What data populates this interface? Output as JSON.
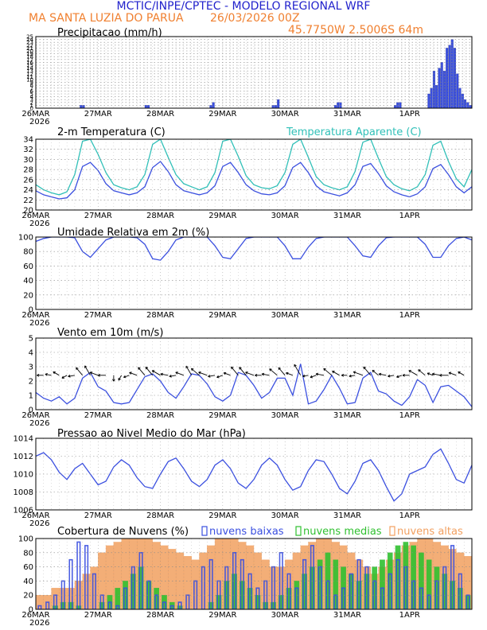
{
  "header": {
    "title": "MCTIC/INPE/CPTEC - MODELO REGIONAL WRF",
    "location": "MA SANTA LUZIA DO PARUA",
    "run": "26/03/2026 00Z",
    "coords": "45.7750W 2.5006S 64m"
  },
  "colors": {
    "blue": "#3a4fe0",
    "cyan": "#30c0b8",
    "orange": "#f2a060",
    "green": "#30c030",
    "black": "#000000",
    "grid": "#888888"
  },
  "x_axis": {
    "start_label": "26MAR",
    "year": "2026",
    "dates": [
      "26MAR",
      "27MAR",
      "28MAR",
      "29MAR",
      "30MAR",
      "31MAR",
      "1APR"
    ],
    "hours_total": 168
  },
  "chart_data": [
    {
      "id": "precip",
      "type": "bar",
      "title": "Precipitacao (mm/h)",
      "ylim": [
        0,
        25
      ],
      "yticks": [
        "0",
        "1",
        "2",
        "3",
        "4",
        "5",
        "6",
        "7",
        "8",
        "9",
        "10",
        "11",
        "12",
        "13",
        "14",
        "15",
        "16",
        "17",
        "18",
        "19",
        "20",
        "21",
        "22",
        "23",
        "24",
        "25"
      ],
      "series": [
        {
          "name": "precipitacao",
          "color": "#3a4fe0",
          "x": [
            17,
            18,
            42,
            43,
            67,
            68,
            91,
            92,
            93,
            115,
            116,
            117,
            138,
            139,
            140,
            151,
            152,
            153,
            154,
            155,
            156,
            157,
            158,
            159,
            160,
            161,
            162,
            163,
            164,
            165,
            166,
            167
          ],
          "values": [
            1,
            1,
            1,
            1,
            1,
            2,
            1,
            1,
            3,
            1,
            2,
            2,
            1,
            2,
            2,
            5,
            7,
            13,
            8,
            14,
            16,
            13,
            21,
            22,
            24,
            21,
            12,
            7,
            5,
            3,
            2,
            1
          ]
        }
      ]
    },
    {
      "id": "temp",
      "type": "line",
      "title": "2-m Temperatura (C)",
      "legend": "Temperatura Aparente (C)",
      "ylim": [
        20,
        34
      ],
      "yticks": [
        "20",
        "22",
        "24",
        "26",
        "28",
        "30",
        "32",
        "34"
      ],
      "series": [
        {
          "name": "temperatura",
          "color": "#3a4fe0",
          "x": [
            0,
            3,
            6,
            9,
            12,
            15,
            18,
            21,
            24,
            27,
            30,
            33,
            36,
            39,
            42,
            45,
            48,
            51,
            54,
            57,
            60,
            63,
            66,
            69,
            72,
            75,
            78,
            81,
            84,
            87,
            90,
            93,
            96,
            99,
            102,
            105,
            108,
            111,
            114,
            117,
            120,
            123,
            126,
            129,
            132,
            135,
            138,
            141,
            144,
            147,
            150,
            153,
            156,
            159,
            162,
            165,
            168
          ],
          "values": [
            23.8,
            23,
            22.6,
            22.2,
            22.4,
            24,
            28.6,
            29.4,
            27.8,
            25.2,
            23.8,
            23.4,
            23,
            23.4,
            24.6,
            28.4,
            29.6,
            27.6,
            25,
            23.8,
            23.4,
            23,
            23.4,
            24.8,
            28.6,
            29.4,
            27.4,
            25,
            23.8,
            23.2,
            23,
            23.4,
            24.8,
            28.4,
            29.4,
            27.4,
            24.8,
            23.6,
            23.2,
            22.8,
            23.4,
            25,
            28.6,
            29.2,
            27.2,
            24.8,
            23.6,
            23,
            22.6,
            23.2,
            24.6,
            28.2,
            29,
            27,
            24.6,
            23.4,
            24.6
          ]
        },
        {
          "name": "temperatura aparente",
          "color": "#30c0b8",
          "x": [
            0,
            3,
            6,
            9,
            12,
            15,
            18,
            21,
            24,
            27,
            30,
            33,
            36,
            39,
            42,
            45,
            48,
            51,
            54,
            57,
            60,
            63,
            66,
            69,
            72,
            75,
            78,
            81,
            84,
            87,
            90,
            93,
            96,
            99,
            102,
            105,
            108,
            111,
            114,
            117,
            120,
            123,
            126,
            129,
            132,
            135,
            138,
            141,
            144,
            147,
            150,
            153,
            156,
            159,
            162,
            165,
            168
          ],
          "values": [
            25,
            24,
            23.4,
            23,
            23.6,
            27,
            33.6,
            34,
            31,
            27.4,
            25,
            24.4,
            24,
            24.6,
            27,
            33,
            34,
            30.4,
            27,
            25.2,
            24.6,
            24,
            24.6,
            27.4,
            33.6,
            34,
            30.6,
            26.8,
            25,
            24.4,
            24.2,
            24.8,
            27.4,
            33,
            34,
            30.4,
            26.6,
            25,
            24.4,
            24,
            24.6,
            27.6,
            33.4,
            34,
            30.2,
            26.6,
            25,
            24.2,
            23.8,
            24.6,
            27,
            32.8,
            33.6,
            29.6,
            26.2,
            24.6,
            28
          ]
        }
      ]
    },
    {
      "id": "rh",
      "type": "line",
      "title": "Umidade Relativa em 2m (%)",
      "ylim": [
        0,
        100
      ],
      "yticks": [
        "0",
        "20",
        "40",
        "60",
        "80",
        "100"
      ],
      "series": [
        {
          "name": "umidade relativa",
          "color": "#3a4fe0",
          "x": [
            0,
            3,
            6,
            9,
            12,
            15,
            18,
            21,
            24,
            27,
            30,
            33,
            36,
            39,
            42,
            45,
            48,
            51,
            54,
            57,
            60,
            63,
            66,
            69,
            72,
            75,
            78,
            81,
            84,
            87,
            90,
            93,
            96,
            99,
            102,
            105,
            108,
            111,
            114,
            117,
            120,
            123,
            126,
            129,
            132,
            135,
            138,
            141,
            144,
            147,
            150,
            153,
            156,
            159,
            162,
            165,
            168
          ],
          "values": [
            94,
            98,
            100,
            100,
            100,
            99,
            80,
            72,
            84,
            96,
            100,
            100,
            100,
            99,
            90,
            70,
            68,
            80,
            96,
            100,
            100,
            100,
            100,
            88,
            72,
            70,
            84,
            98,
            100,
            100,
            100,
            100,
            88,
            70,
            70,
            86,
            98,
            100,
            100,
            100,
            100,
            88,
            74,
            72,
            88,
            99,
            100,
            100,
            100,
            100,
            90,
            72,
            72,
            88,
            98,
            100,
            96
          ]
        }
      ]
    },
    {
      "id": "wind",
      "type": "line",
      "title": "Vento em 10m (m/s)",
      "ylim": [
        0,
        5
      ],
      "yticks": [
        "0",
        "1",
        "2",
        "3",
        "4",
        "5"
      ],
      "series": [
        {
          "name": "velocidade do vento",
          "color": "#3a4fe0",
          "x": [
            0,
            3,
            6,
            9,
            12,
            15,
            18,
            21,
            24,
            27,
            30,
            33,
            36,
            39,
            42,
            45,
            48,
            51,
            54,
            57,
            60,
            63,
            66,
            69,
            72,
            75,
            78,
            81,
            84,
            87,
            90,
            93,
            96,
            99,
            102,
            105,
            108,
            111,
            114,
            117,
            120,
            123,
            126,
            129,
            132,
            135,
            138,
            141,
            144,
            147,
            150,
            153,
            156,
            159,
            162,
            165,
            168
          ],
          "values": [
            1.2,
            0.8,
            0.6,
            0.9,
            0.4,
            0.8,
            2.2,
            2.6,
            1.6,
            1.3,
            0.5,
            0.4,
            0.5,
            1.4,
            2.3,
            2.5,
            2.0,
            1.2,
            0.8,
            1.6,
            2.5,
            2.4,
            1.8,
            0.9,
            0.6,
            1.0,
            2.6,
            2.4,
            1.7,
            0.8,
            1.2,
            2.2,
            2.2,
            1.0,
            3.2,
            0.4,
            0.6,
            1.4,
            2.4,
            1.5,
            0.4,
            0.5,
            2.2,
            2.6,
            1.3,
            1.1,
            0.6,
            0.3,
            0.9,
            2.1,
            1.7,
            0.5,
            1.6,
            1.7,
            1.3,
            0.9,
            0.2
          ]
        }
      ],
      "arrow_x": [
        0,
        3,
        6,
        9,
        12,
        15,
        18,
        21,
        24,
        27,
        30,
        33,
        36,
        39,
        42,
        45,
        48,
        51,
        54,
        57,
        60,
        63,
        66,
        69,
        72,
        75,
        78,
        81,
        84,
        87,
        90,
        93,
        96,
        99,
        102,
        105,
        108,
        111,
        114,
        117,
        120,
        123,
        126,
        129,
        132,
        135,
        138,
        141,
        144,
        147,
        150,
        153,
        156,
        159,
        162,
        165
      ],
      "arrow_dir": [
        200,
        180,
        190,
        210,
        150,
        170,
        230,
        240,
        200,
        180,
        90,
        120,
        160,
        200,
        230,
        230,
        210,
        190,
        170,
        200,
        240,
        220,
        200,
        170,
        160,
        200,
        230,
        230,
        200,
        180,
        190,
        220,
        230,
        200,
        240,
        170,
        160,
        190,
        220,
        210,
        180,
        170,
        200,
        230,
        220,
        190,
        170,
        160,
        180,
        210,
        220,
        200,
        190,
        180,
        200,
        210
      ],
      "arrow_speed": [
        1.2,
        0.8,
        0.6,
        0.9,
        0.4,
        0.8,
        2.2,
        2.6,
        1.6,
        1.3,
        0.5,
        0.4,
        0.5,
        1.4,
        2.3,
        2.5,
        2.0,
        1.2,
        0.8,
        1.6,
        2.5,
        2.4,
        1.8,
        0.9,
        0.6,
        1.0,
        2.6,
        2.4,
        1.7,
        0.8,
        1.2,
        2.2,
        2.2,
        1.0,
        3.2,
        0.4,
        0.6,
        1.4,
        2.4,
        1.5,
        0.4,
        0.5,
        2.2,
        2.6,
        1.3,
        1.1,
        0.6,
        0.3,
        0.9,
        2.1,
        1.7,
        0.5,
        1.6,
        1.7,
        1.3,
        0.9
      ]
    },
    {
      "id": "pres",
      "type": "line",
      "title": "Pressao ao Nivel Medio do Mar (hPa)",
      "ylim": [
        1006,
        1014
      ],
      "yticks": [
        "1006",
        "1008",
        "1010",
        "1012",
        "1014"
      ],
      "series": [
        {
          "name": "pressao",
          "color": "#3a4fe0",
          "x": [
            0,
            3,
            6,
            9,
            12,
            15,
            18,
            21,
            24,
            27,
            30,
            33,
            36,
            39,
            42,
            45,
            48,
            51,
            54,
            57,
            60,
            63,
            66,
            69,
            72,
            75,
            78,
            81,
            84,
            87,
            90,
            93,
            96,
            99,
            102,
            105,
            108,
            111,
            114,
            117,
            120,
            123,
            126,
            129,
            132,
            135,
            138,
            141,
            144,
            147,
            150,
            153,
            156,
            159,
            162,
            165,
            168
          ],
          "values": [
            1012,
            1012.4,
            1011.6,
            1010.2,
            1009.4,
            1010.6,
            1011.2,
            1010,
            1008.8,
            1009.2,
            1010.8,
            1011.6,
            1011,
            1009.6,
            1008.6,
            1008.4,
            1010,
            1011.4,
            1011.8,
            1010.6,
            1009.2,
            1008.6,
            1009.4,
            1011,
            1011.6,
            1010.6,
            1009,
            1008.4,
            1009.4,
            1011,
            1011.8,
            1011,
            1009.4,
            1008.2,
            1008.6,
            1010.4,
            1011.6,
            1011.4,
            1010,
            1008.4,
            1007.8,
            1009.2,
            1011.2,
            1011.6,
            1010.4,
            1008.6,
            1007,
            1007.8,
            1010,
            1010.4,
            1010.8,
            1012.2,
            1012.8,
            1011.2,
            1009.4,
            1009,
            1011
          ]
        }
      ]
    },
    {
      "id": "clouds",
      "type": "bar",
      "title": "Cobertura de Nuvens (%)",
      "legend": [
        "nuvens baixas",
        "nuvens medias",
        "nuvens altas"
      ],
      "ylim": [
        0,
        100
      ],
      "yticks": [
        "0",
        "20",
        "40",
        "60",
        "80",
        "100"
      ],
      "series": [
        {
          "name": "nuvens altas",
          "color": "#f2a060",
          "values": [
            20,
            20,
            30,
            30,
            30,
            40,
            50,
            60,
            80,
            90,
            95,
            100,
            100,
            100,
            100,
            95,
            90,
            85,
            80,
            75,
            70,
            80,
            90,
            100,
            100,
            100,
            95,
            90,
            80,
            70,
            60,
            60,
            70,
            80,
            90,
            95,
            100,
            100,
            95,
            90,
            80,
            70,
            60,
            50,
            60,
            70,
            80,
            90,
            95,
            100,
            100,
            95,
            90,
            85,
            80,
            75
          ]
        },
        {
          "name": "nuvens medias",
          "color": "#30c030",
          "values": [
            0,
            0,
            5,
            10,
            10,
            5,
            0,
            0,
            10,
            20,
            30,
            40,
            50,
            60,
            40,
            30,
            20,
            10,
            5,
            0,
            0,
            0,
            10,
            20,
            40,
            50,
            40,
            30,
            20,
            10,
            10,
            20,
            30,
            40,
            50,
            60,
            70,
            80,
            70,
            60,
            50,
            40,
            50,
            60,
            70,
            80,
            90,
            95,
            90,
            80,
            70,
            60,
            50,
            40,
            30,
            20
          ]
        },
        {
          "name": "nuvens baixas",
          "color": "#3a4fe0",
          "values": [
            5,
            10,
            20,
            40,
            70,
            95,
            90,
            50,
            20,
            10,
            5,
            30,
            60,
            80,
            40,
            20,
            10,
            5,
            10,
            20,
            40,
            60,
            70,
            40,
            60,
            80,
            70,
            50,
            30,
            40,
            60,
            80,
            50,
            30,
            70,
            90,
            60,
            40,
            20,
            30,
            50,
            70,
            60,
            40,
            30,
            50,
            70,
            60,
            40,
            30,
            20,
            40,
            60,
            90,
            50,
            20
          ]
        }
      ]
    }
  ]
}
